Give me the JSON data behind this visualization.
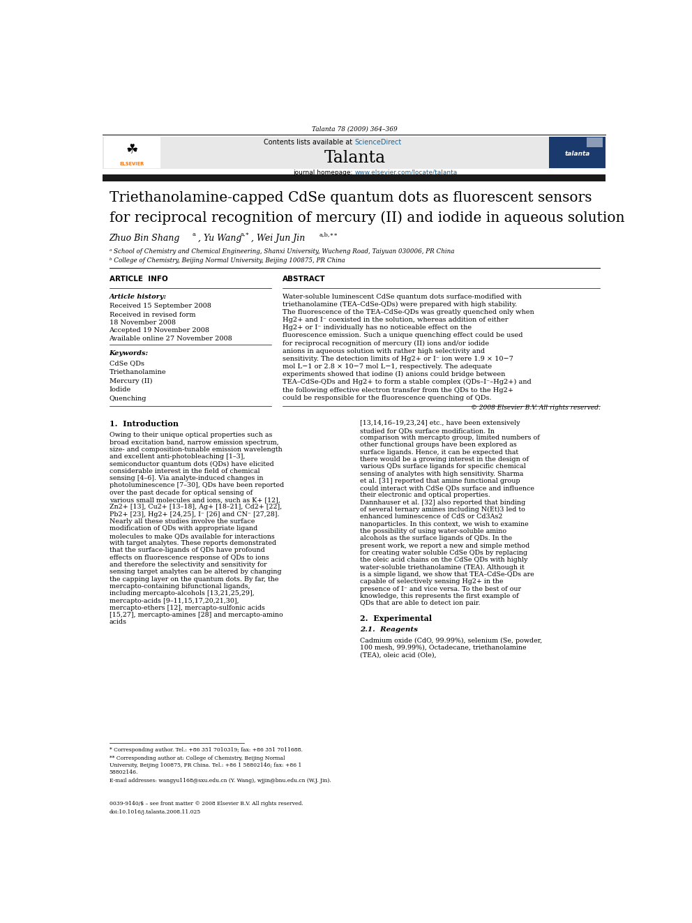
{
  "page_width": 9.92,
  "page_height": 13.23,
  "bg_color": "#ffffff",
  "header_journal_ref": "Talanta 78 (2009) 364–369",
  "journal_name": "Talanta",
  "contents_text": "Contents lists available at ScienceDirect",
  "journal_url": "journal homepage: www.elsevier.com/locate/talanta",
  "affil_a": "ᵃ School of Chemistry and Chemical Engineering, Shanxi University, Wucheng Road, Taiyuan 030006, PR China",
  "affil_b": "ᵇ College of Chemistry, Beijing Normal University, Beijing 100875, PR China",
  "article_info_title": "ARTICLE  INFO",
  "abstract_title": "ABSTRACT",
  "article_history_label": "Article history:",
  "received1": "Received 15 September 2008",
  "accepted": "Accepted 19 November 2008",
  "available": "Available online 27 November 2008",
  "keywords_label": "Keywords:",
  "keywords": [
    "CdSe QDs",
    "Triethanolamine",
    "Mercury (II)",
    "Iodide",
    "Quenching"
  ],
  "abstract_text": "Water-soluble luminescent CdSe quantum dots surface-modified with triethanolamine (TEA–CdSe-QDs) were prepared with high stability. The fluorescence of the TEA–CdSe-QDs was greatly quenched only when Hg2+ and I⁻ coexisted in the solution, whereas addition of either Hg2+ or I⁻ individually has no noticeable effect on the fluorescence emission. Such a unique quenching effect could be used for reciprocal recognition of mercury (II) ions and/or iodide anions in aqueous solution with rather high selectivity and sensitivity. The detection limits of Hg2+ or I⁻ ion were 1.9 × 10−7 mol L−1 or 2.8 × 10−7 mol L−1, respectively. The adequate experiments showed that iodine (I) anions could bridge between TEA–CdSe-QDs and Hg2+ to form a stable complex (QDs–I⁻–Hg2+) and the following effective electron transfer from the QDs to the Hg2+ could be responsible for the fluorescence quenching of QDs.",
  "copyright": "© 2008 Elsevier B.V. All rights reserved.",
  "section1_title": "1.  Introduction",
  "intro_text_left": "   Owing to their unique optical properties such as broad excitation band, narrow emission spectrum, size- and composition-tunable emission wavelength and excellent anti-photobleaching [1–3], semiconductor quantum dots (QDs) have elicited considerable interest in the field of chemical sensing [4–6]. Via analyte-induced changes in photoluminescence [7–30], QDs have been reported over the past decade for optical sensing of various small molecules and ions, such as K+ [12], Zn2+ [13], Cu2+ [13–18], Ag+ [18–21], Cd2+ [22], Pb2+ [23], Hg2+ [24,25], I⁻ [26] and CN⁻ [27,28]. Nearly all these studies involve the surface modification of QDs with appropriate ligand molecules to make QDs available for interactions with target analytes. These reports demonstrated that the surface-ligands of QDs have profound effects on fluorescence response of QDs to ions and therefore the selectivity and sensitivity for sensing target analytes can be altered by changing the capping layer on the quantum dots. By far, the mercapto-containing bifunctional ligands, including mercapto-alcohols [13,21,25,29], mercapto-acids [9–11,15,17,20,21,30], mercapto-ethers [12], mercapto-sulfonic acids [15,27], mercapto-amines [28] and mercapto-amino acids",
  "intro_text_right": "[13,14,16–19,23,24] etc., have been extensively studied for QDs surface modification. In comparison with mercapto group, limited numbers of other functional groups have been explored as surface ligands. Hence, it can be expected that there would be a growing interest in the design of various QDs surface ligands for specific chemical sensing of analytes with high sensitivity.\n   Sharma et al. [31] reported that amine functional group could interact with CdSe QDs surface and influence their electronic and optical properties. Dannhauser et al. [32] also reported that binding of several ternary amines including N(Et)3 led to enhanced luminescence of CdS or Cd3As2 nanoparticles. In this context, we wish to examine the possibility of using water-soluble amino alcohols as the surface ligands of QDs. In the present work, we report a new and simple method for creating water soluble CdSe QDs by replacing the oleic acid chains on the CdSe QDs with highly water-soluble triethanolamine (TEA). Although it is a simple ligand, we show that TEA–CdSe-QDs are capable of selectively sensing Hg2+ in the presence of I⁻ and vice versa. To the best of our knowledge, this represents the first example of QDs that are able to detect ion pair.",
  "section2_title": "2.  Experimental",
  "section21_title": "2.1.  Reagents",
  "reagents_text": "   Cadmium oxide (CdO, 99.99%), selenium (Se, powder, 100 mesh, 99.99%), Octadecane, triethanolamine (TEA), oleic acid (Ole),",
  "footnote_star": "* Corresponding author. Tel.: +86 351 7010319; fax: +86 351 7011688.",
  "footnote_dstar": "** Corresponding author at: College of Chemistry, Beijing Normal University, Beijing 100875, PR China. Tel.: +86 1 58802146; fax: +86 1 58802146.",
  "footnote_email": "E-mail addresses: wangyu1168@sxu.edu.cn (Y. Wang), wjjin@bnu.edu.cn (W.J. Jin).",
  "issn_line": "0039-9140/$ – see front matter © 2008 Elsevier B.V. All rights reserved.",
  "doi_line": "doi:10.1016/j.talanta.2008.11.025",
  "header_bg": "#e8e8e8",
  "dark_bar_color": "#1a1a1a",
  "elsevier_orange": "#f47920",
  "sciencedirect_blue": "#1a6496",
  "link_blue": "#1a6496"
}
